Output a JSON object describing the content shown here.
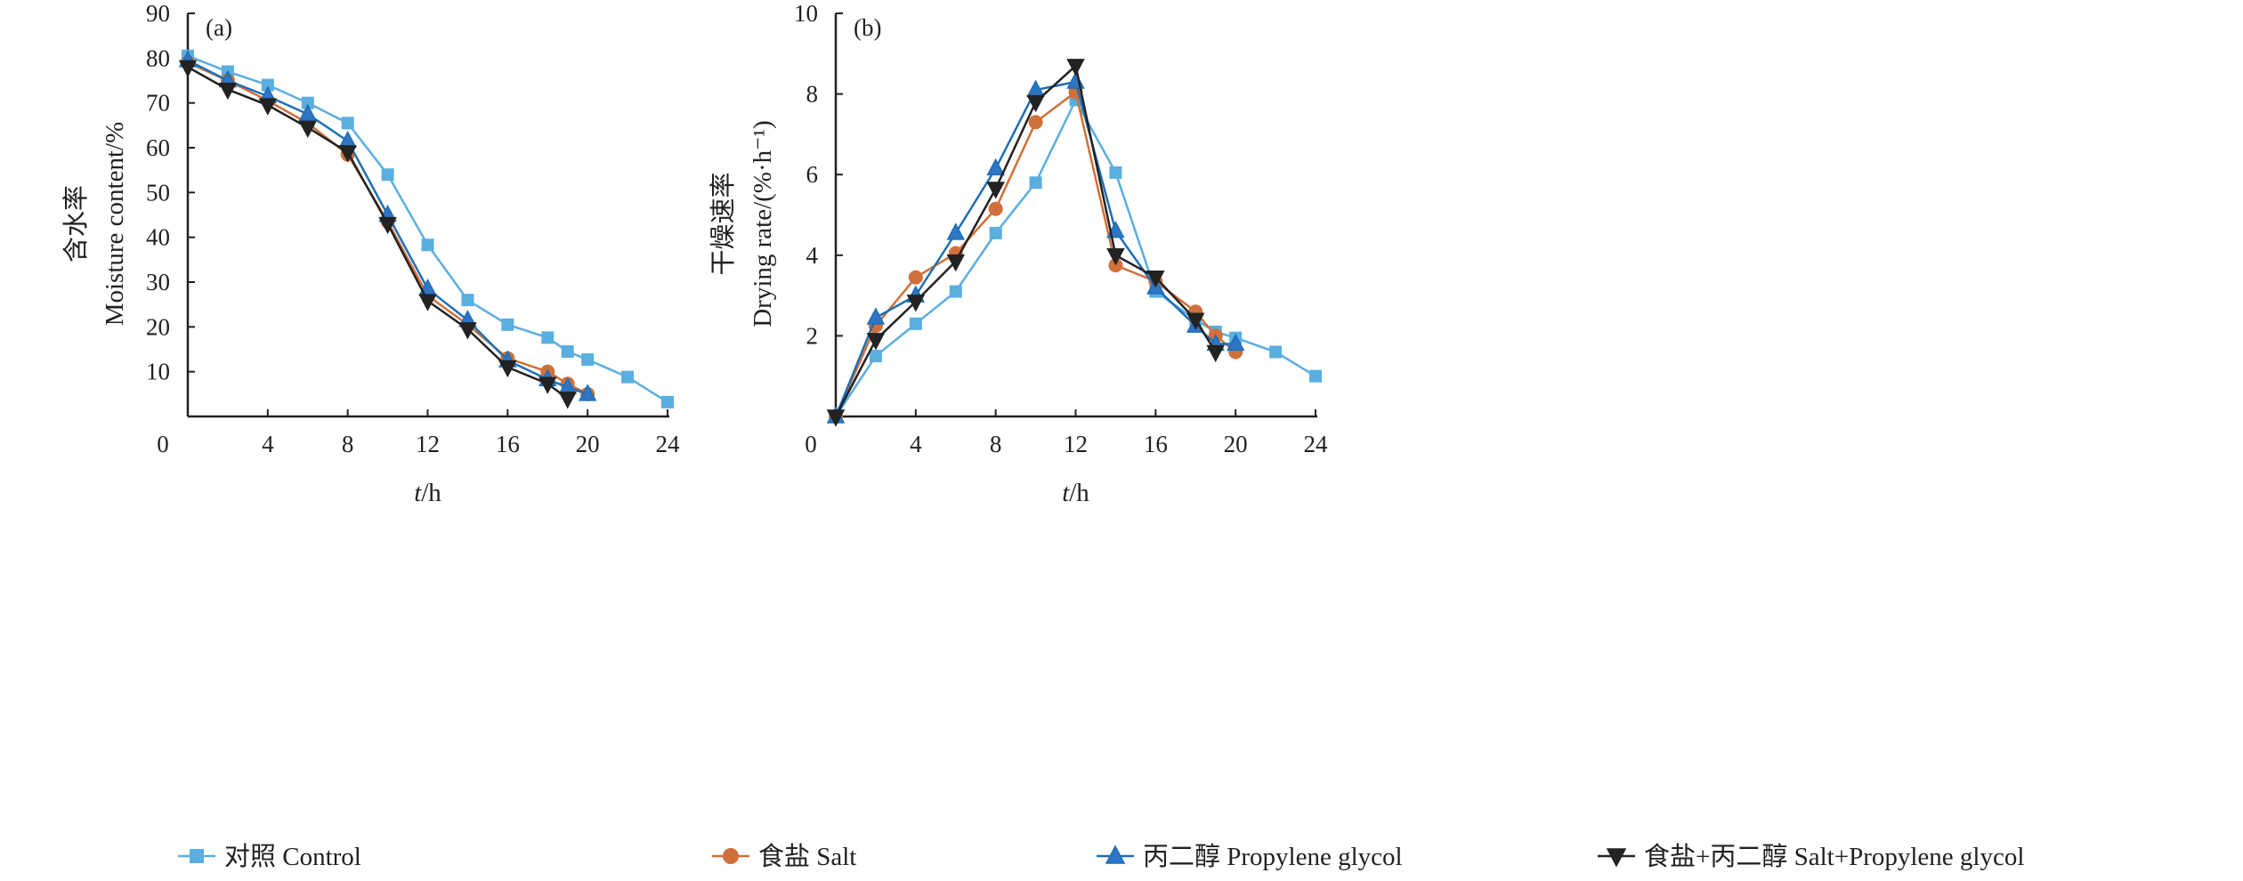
{
  "chart_data": [
    {
      "type": "line",
      "panel_label": "(a)",
      "xlabel_italic": "t",
      "xlabel_unit": "/h",
      "ylabel_cn": "含水率",
      "ylabel_en": "Moisture content/%",
      "xlim": [
        0,
        24
      ],
      "ylim": [
        0,
        90
      ],
      "xticks": [
        0,
        4,
        8,
        12,
        16,
        20,
        24
      ],
      "yticks": [
        10,
        20,
        30,
        40,
        50,
        60,
        70,
        80,
        90
      ],
      "origin_label": "0",
      "grid": false,
      "series": [
        {
          "name": "对照 Control",
          "x": [
            0,
            2,
            4,
            6,
            8,
            10,
            12,
            14,
            16,
            18,
            19,
            20,
            22,
            24
          ],
          "y": [
            80.5,
            77,
            74,
            70,
            65.5,
            54,
            38.3,
            26,
            20.5,
            17.6,
            14.5,
            12.7,
            8.8,
            3.2
          ]
        },
        {
          "name": "食盐 Salt",
          "x": [
            0,
            2,
            4,
            6,
            8,
            10,
            12,
            14,
            16,
            18,
            19,
            20
          ],
          "y": [
            79,
            75,
            70.5,
            65.5,
            58.5,
            43.5,
            27,
            20.5,
            13,
            10,
            7.3,
            5
          ]
        },
        {
          "name": "丙二醇 Propylene glycol",
          "x": [
            0,
            2,
            4,
            6,
            8,
            10,
            12,
            14,
            16,
            18,
            19,
            20
          ],
          "y": [
            79.5,
            75,
            71.5,
            67.5,
            61.5,
            45,
            28.5,
            21.5,
            12.5,
            8.3,
            6.5,
            5
          ]
        },
        {
          "name": "食盐+丙二醇 Salt+Propylene glycol",
          "x": [
            0,
            2,
            4,
            6,
            8,
            10,
            12,
            14,
            16,
            18,
            19
          ],
          "y": [
            78,
            73,
            69.5,
            64.5,
            59,
            43,
            25.8,
            19.5,
            11,
            7.3,
            4
          ]
        }
      ]
    },
    {
      "type": "line",
      "panel_label": "(b)",
      "xlabel_italic": "t",
      "xlabel_unit": "/h",
      "ylabel_cn": "干燥速率",
      "ylabel_en": "Drying rate/(%·h⁻¹)",
      "xlim": [
        0,
        24
      ],
      "ylim": [
        0,
        10
      ],
      "xticks": [
        0,
        4,
        8,
        12,
        16,
        20,
        24
      ],
      "yticks": [
        2,
        4,
        6,
        8,
        10
      ],
      "origin_label": "0",
      "grid": false,
      "series": [
        {
          "name": "对照 Control",
          "x": [
            0,
            2,
            4,
            6,
            8,
            10,
            12,
            14,
            16,
            18,
            19,
            20,
            22,
            24
          ],
          "y": [
            0,
            1.5,
            2.3,
            3.1,
            4.55,
            5.8,
            7.85,
            6.05,
            3.1,
            2.4,
            2.1,
            1.95,
            1.6,
            1.0
          ]
        },
        {
          "name": "食盐 Salt",
          "x": [
            0,
            2,
            4,
            6,
            8,
            10,
            12,
            14,
            16,
            18,
            19,
            20
          ],
          "y": [
            0,
            2.25,
            3.45,
            4.05,
            5.15,
            7.3,
            8.05,
            3.75,
            3.35,
            2.6,
            2.0,
            1.6
          ]
        },
        {
          "name": "丙二醇 Propylene glycol",
          "x": [
            0,
            2,
            4,
            6,
            8,
            10,
            12,
            14,
            16,
            18,
            19,
            20
          ],
          "y": [
            0,
            2.45,
            3.0,
            4.55,
            6.15,
            8.1,
            8.3,
            4.6,
            3.2,
            2.25,
            1.8,
            1.8
          ]
        },
        {
          "name": "食盐+丙二醇 Salt+Propylene glycol",
          "x": [
            0,
            2,
            4,
            6,
            8,
            10,
            12,
            14,
            16,
            18,
            19
          ],
          "y": [
            0,
            1.9,
            2.85,
            3.85,
            5.65,
            7.8,
            8.7,
            4.0,
            3.45,
            2.4,
            1.6
          ]
        }
      ]
    }
  ],
  "legend": {
    "placement": "bottom",
    "items": [
      {
        "label": "对照 Control",
        "marker": "square",
        "color": "#5aaee0",
        "fill": "#5aaee0"
      },
      {
        "label": "食盐 Salt",
        "marker": "circle",
        "color": "#d0703a",
        "fill": "#d0703a"
      },
      {
        "label": "丙二醇 Propylene glycol",
        "marker": "triangle-up",
        "color": "#1f6fb5",
        "fill": "#2e75c5"
      },
      {
        "label": "食盐+丙二醇 Salt+Propylene glycol",
        "marker": "triangle-down",
        "color": "#222222",
        "fill": "#222222"
      }
    ]
  }
}
